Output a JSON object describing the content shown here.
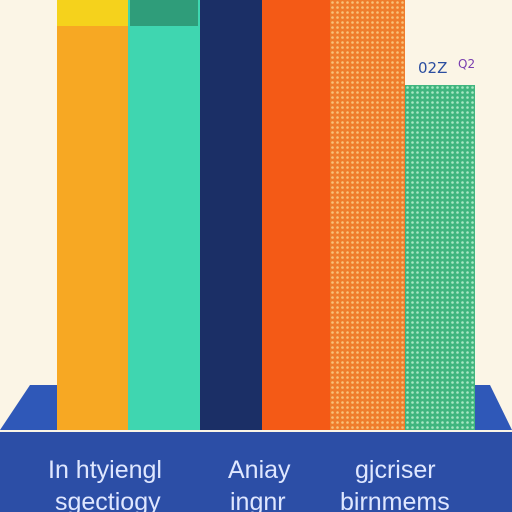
{
  "header": {
    "badge": "02Z",
    "badge_small": "Q2"
  },
  "footer": {
    "columns": [
      {
        "line1": "In htyiengl",
        "line2": "sgectiogy"
      },
      {
        "line1": "Aniay",
        "line2": "ingnr"
      },
      {
        "line1": "gjcriser",
        "line2": "birnmems"
      }
    ]
  }
}
